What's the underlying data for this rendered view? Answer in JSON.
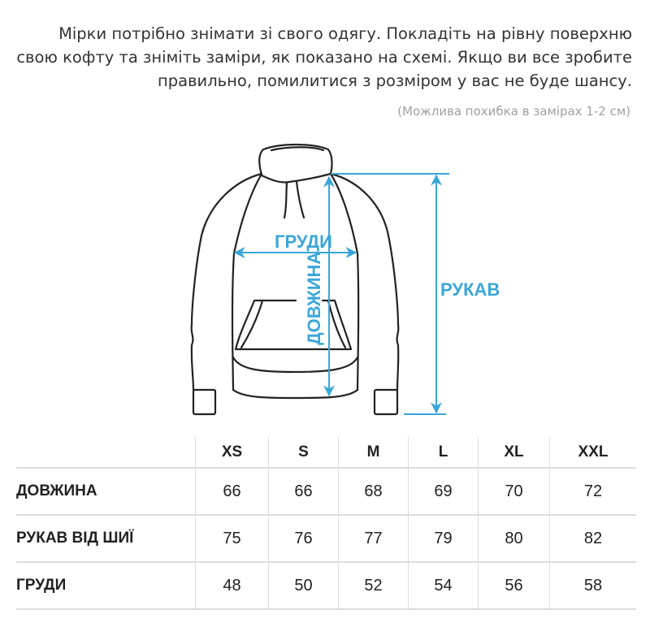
{
  "intro_text": "Мірки потрібно знімати зі свого одягу. Покладіть на рівну поверхню свою кофту та зніміть заміри, як показано на схемі. Якщо ви все зробите правильно, помилитися з розміром у вас не буде шансу.",
  "note": "(Можлива похибка в замірах 1-2 см)",
  "diagram": {
    "chest_label": "ГРУДИ",
    "length_label": "ДОВЖИНА",
    "sleeve_label": "РУКАВ",
    "accent_color": "#3aa6d8"
  },
  "table": {
    "sizes": [
      "XS",
      "S",
      "M",
      "L",
      "XL",
      "XXL"
    ],
    "rows": [
      {
        "label": "ДОВЖИНА",
        "values": [
          "66",
          "66",
          "68",
          "69",
          "70",
          "72"
        ]
      },
      {
        "label": "РУКАВ ВІД ШИЇ",
        "values": [
          "75",
          "76",
          "77",
          "79",
          "80",
          "82"
        ]
      },
      {
        "label": "ГРУДИ",
        "values": [
          "48",
          "50",
          "52",
          "54",
          "56",
          "58"
        ]
      }
    ]
  }
}
